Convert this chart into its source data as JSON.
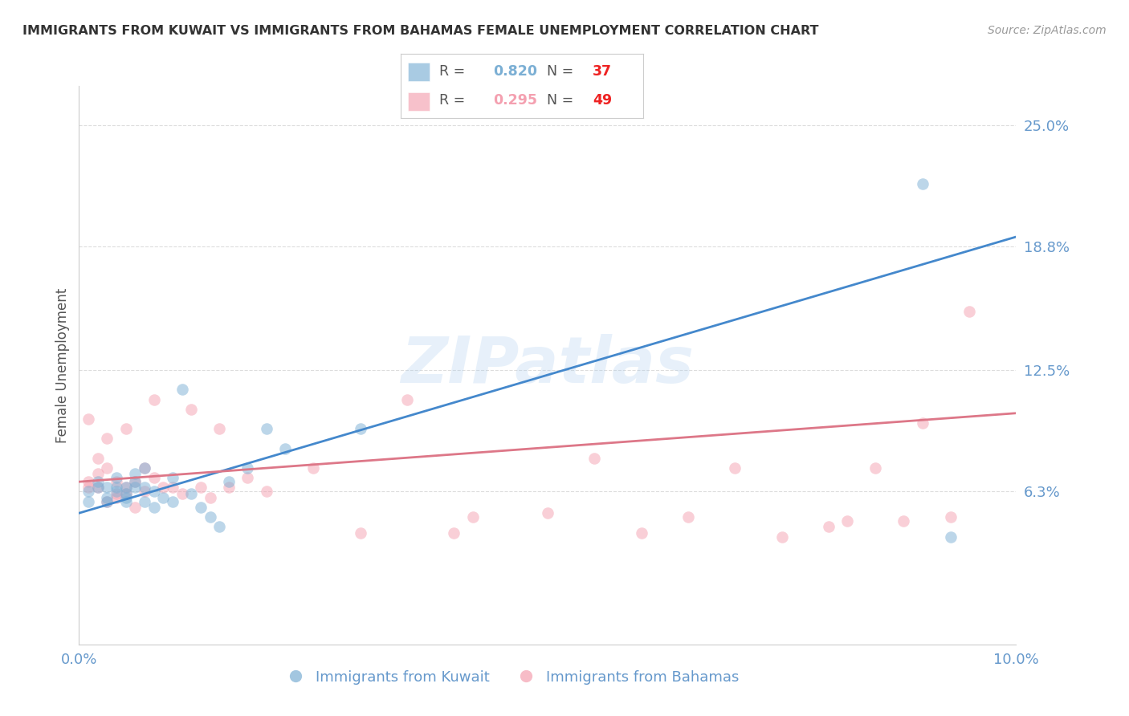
{
  "title": "IMMIGRANTS FROM KUWAIT VS IMMIGRANTS FROM BAHAMAS FEMALE UNEMPLOYMENT CORRELATION CHART",
  "source": "Source: ZipAtlas.com",
  "ylabel": "Female Unemployment",
  "xlim": [
    0.0,
    0.1
  ],
  "ylim": [
    -0.015,
    0.27
  ],
  "y_ticks": [
    0.063,
    0.125,
    0.188,
    0.25
  ],
  "y_tick_labels": [
    "6.3%",
    "12.5%",
    "18.8%",
    "25.0%"
  ],
  "x_ticks": [
    0.0,
    0.02,
    0.04,
    0.06,
    0.08,
    0.1
  ],
  "x_tick_labels": [
    "0.0%",
    "",
    "",
    "",
    "",
    "10.0%"
  ],
  "kuwait_color": "#7BAFD4",
  "bahamas_color": "#F4A0B0",
  "kuwait_R": 0.82,
  "kuwait_N": 37,
  "bahamas_R": 0.295,
  "bahamas_N": 49,
  "kuwait_label": "Immigrants from Kuwait",
  "bahamas_label": "Immigrants from Bahamas",
  "watermark": "ZIPatlas",
  "background_color": "#FFFFFF",
  "grid_color": "#DDDDDD",
  "axis_label_color": "#6699CC",
  "kuwait_line_color": "#4488CC",
  "bahamas_line_color": "#DD7788",
  "kuwait_scatter": {
    "x": [
      0.001,
      0.001,
      0.002,
      0.002,
      0.003,
      0.003,
      0.003,
      0.004,
      0.004,
      0.004,
      0.005,
      0.005,
      0.005,
      0.005,
      0.006,
      0.006,
      0.006,
      0.007,
      0.007,
      0.007,
      0.008,
      0.008,
      0.009,
      0.01,
      0.01,
      0.011,
      0.012,
      0.013,
      0.014,
      0.015,
      0.016,
      0.018,
      0.02,
      0.022,
      0.03,
      0.09,
      0.093
    ],
    "y": [
      0.063,
      0.058,
      0.065,
      0.068,
      0.065,
      0.06,
      0.058,
      0.063,
      0.07,
      0.065,
      0.065,
      0.06,
      0.058,
      0.062,
      0.072,
      0.068,
      0.065,
      0.065,
      0.058,
      0.075,
      0.063,
      0.055,
      0.06,
      0.07,
      0.058,
      0.115,
      0.062,
      0.055,
      0.05,
      0.045,
      0.068,
      0.075,
      0.095,
      0.085,
      0.095,
      0.22,
      0.04
    ]
  },
  "bahamas_scatter": {
    "x": [
      0.001,
      0.001,
      0.001,
      0.002,
      0.002,
      0.002,
      0.003,
      0.003,
      0.003,
      0.004,
      0.004,
      0.004,
      0.005,
      0.005,
      0.005,
      0.006,
      0.006,
      0.007,
      0.007,
      0.008,
      0.008,
      0.009,
      0.01,
      0.011,
      0.012,
      0.013,
      0.014,
      0.015,
      0.016,
      0.018,
      0.02,
      0.025,
      0.03,
      0.035,
      0.04,
      0.042,
      0.05,
      0.055,
      0.06,
      0.065,
      0.07,
      0.075,
      0.08,
      0.082,
      0.085,
      0.088,
      0.09,
      0.093,
      0.095
    ],
    "y": [
      0.065,
      0.068,
      0.1,
      0.08,
      0.065,
      0.072,
      0.09,
      0.075,
      0.058,
      0.068,
      0.062,
      0.06,
      0.065,
      0.095,
      0.062,
      0.068,
      0.055,
      0.075,
      0.063,
      0.11,
      0.07,
      0.065,
      0.065,
      0.062,
      0.105,
      0.065,
      0.06,
      0.095,
      0.065,
      0.07,
      0.063,
      0.075,
      0.042,
      0.11,
      0.042,
      0.05,
      0.052,
      0.08,
      0.042,
      0.05,
      0.075,
      0.04,
      0.045,
      0.048,
      0.075,
      0.048,
      0.098,
      0.05,
      0.155
    ]
  },
  "kuwait_line": {
    "x0": 0.0,
    "y0": 0.052,
    "x1": 0.1,
    "y1": 0.193
  },
  "bahamas_line": {
    "x0": 0.0,
    "y0": 0.068,
    "x1": 0.1,
    "y1": 0.103
  }
}
